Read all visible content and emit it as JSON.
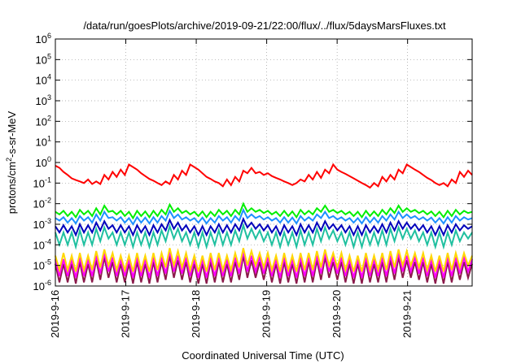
{
  "chart_data": {
    "type": "line",
    "title": "/data/run/goesPlots/archive/2019-09-21/22:00/flux/../flux/5daysMarsFluxes.txt",
    "xlabel": "Coordinated Universal Time (UTC)",
    "ylabel_main": "protons/cm",
    "ylabel_sup": "2",
    "ylabel_rest": "-s-sr-MeV",
    "y_scale": "log",
    "ylim": [
      1e-06,
      1000000.0
    ],
    "y_tick_base": "10",
    "y_tick_exponents": [
      "-6",
      "-5",
      "-4",
      "-3",
      "-2",
      "-1",
      "0",
      "1",
      "2",
      "3",
      "4",
      "5",
      "6"
    ],
    "xlim": [
      "2019-09-16T00:00",
      "2019-09-21T22:00"
    ],
    "x_tick_labels": [
      "2019-9-16",
      "2019-9-17",
      "2019-9-18",
      "2019-9-19",
      "2019-9-20",
      "2019-9-21"
    ],
    "grid": true,
    "legend": "none",
    "series": [
      {
        "color": "#ff0000",
        "values": [
          0.7,
          0.55,
          0.35,
          0.25,
          0.17,
          0.14,
          0.12,
          0.1,
          0.15,
          0.09,
          0.12,
          0.09,
          0.25,
          0.15,
          0.35,
          0.2,
          0.45,
          0.25,
          0.8,
          0.6,
          0.45,
          0.3,
          0.22,
          0.16,
          0.13,
          0.1,
          0.08,
          0.12,
          0.09,
          0.25,
          0.15,
          0.4,
          0.25,
          0.8,
          0.6,
          0.45,
          0.3,
          0.2,
          0.16,
          0.12,
          0.1,
          0.07,
          0.15,
          0.08,
          0.2,
          0.12,
          0.4,
          0.3,
          0.55,
          0.3,
          0.35,
          0.25,
          0.3,
          0.22,
          0.18,
          0.15,
          0.12,
          0.1,
          0.08,
          0.1,
          0.15,
          0.12,
          0.25,
          0.15,
          0.35,
          0.18,
          0.45,
          0.3,
          0.8,
          0.45,
          0.35,
          0.28,
          0.22,
          0.17,
          0.13,
          0.1,
          0.08,
          0.06,
          0.1,
          0.07,
          0.2,
          0.12,
          0.25,
          0.15,
          0.45,
          0.3,
          0.8,
          0.6,
          0.45,
          0.35,
          0.25,
          0.18,
          0.14,
          0.1,
          0.08,
          0.1,
          0.07,
          0.15,
          0.1,
          0.35,
          0.2,
          0.4,
          0.25
        ]
      },
      {
        "color": "#00ee00",
        "values": [
          0.004,
          0.003,
          0.0045,
          0.0025,
          0.004,
          0.0022,
          0.005,
          0.003,
          0.0045,
          0.0025,
          0.006,
          0.003,
          0.008,
          0.004,
          0.0045,
          0.003,
          0.0045,
          0.0025,
          0.004,
          0.002,
          0.0045,
          0.0025,
          0.0042,
          0.0022,
          0.0045,
          0.0025,
          0.005,
          0.003,
          0.009,
          0.004,
          0.006,
          0.0035,
          0.0045,
          0.003,
          0.004,
          0.0025,
          0.0042,
          0.0022,
          0.004,
          0.0025,
          0.005,
          0.003,
          0.0045,
          0.0025,
          0.005,
          0.003,
          0.01,
          0.004,
          0.006,
          0.004,
          0.005,
          0.0035,
          0.0045,
          0.003,
          0.004,
          0.0025,
          0.0045,
          0.0025,
          0.0042,
          0.0022,
          0.005,
          0.003,
          0.0045,
          0.003,
          0.006,
          0.004,
          0.008,
          0.004,
          0.005,
          0.0035,
          0.0045,
          0.003,
          0.004,
          0.0025,
          0.004,
          0.0022,
          0.0045,
          0.0025,
          0.0042,
          0.0025,
          0.005,
          0.003,
          0.006,
          0.0035,
          0.008,
          0.004,
          0.006,
          0.004,
          0.005,
          0.0035,
          0.0045,
          0.003,
          0.0042,
          0.0025,
          0.004,
          0.0022,
          0.0045,
          0.0025,
          0.005,
          0.003,
          0.0045,
          0.0035,
          0.004
        ]
      },
      {
        "color": "#1e90ff",
        "values": [
          0.002,
          0.0015,
          0.0022,
          0.0012,
          0.002,
          0.0011,
          0.0025,
          0.0015,
          0.0022,
          0.0012,
          0.003,
          0.0015,
          0.004,
          0.002,
          0.0022,
          0.0015,
          0.0022,
          0.0012,
          0.002,
          0.001,
          0.0022,
          0.0012,
          0.0021,
          0.0011,
          0.0022,
          0.0012,
          0.0025,
          0.0015,
          0.0045,
          0.002,
          0.003,
          0.0017,
          0.0022,
          0.0015,
          0.002,
          0.0012,
          0.0021,
          0.0011,
          0.002,
          0.0012,
          0.0025,
          0.0015,
          0.0022,
          0.0012,
          0.0025,
          0.0015,
          0.005,
          0.002,
          0.003,
          0.002,
          0.0025,
          0.0017,
          0.0022,
          0.0015,
          0.002,
          0.0012,
          0.0022,
          0.0012,
          0.0021,
          0.0011,
          0.0025,
          0.0015,
          0.0022,
          0.0015,
          0.003,
          0.002,
          0.004,
          0.002,
          0.0025,
          0.0017,
          0.0022,
          0.0015,
          0.002,
          0.0012,
          0.002,
          0.0011,
          0.0022,
          0.0012,
          0.0021,
          0.0012,
          0.0025,
          0.0015,
          0.003,
          0.0017,
          0.004,
          0.002,
          0.003,
          0.002,
          0.0025,
          0.0017,
          0.0022,
          0.0015,
          0.0021,
          0.0012,
          0.002,
          0.0011,
          0.0022,
          0.0012,
          0.0025,
          0.0015,
          0.0022,
          0.0017,
          0.002
        ]
      },
      {
        "color": "#0000bb",
        "values": [
          0.0008,
          0.0004,
          0.0009,
          0.0004,
          0.0008,
          0.0003,
          0.001,
          0.0004,
          0.0009,
          0.0004,
          0.0012,
          0.0005,
          0.0014,
          0.0006,
          0.0009,
          0.0004,
          0.0009,
          0.0004,
          0.0008,
          0.0003,
          0.0009,
          0.0004,
          0.0008,
          0.0003,
          0.0009,
          0.0004,
          0.001,
          0.0005,
          0.0016,
          0.0006,
          0.0012,
          0.0005,
          0.0009,
          0.0004,
          0.0008,
          0.0003,
          0.0008,
          0.0003,
          0.0008,
          0.0004,
          0.001,
          0.0004,
          0.0009,
          0.0004,
          0.001,
          0.0005,
          0.0018,
          0.0007,
          0.0012,
          0.0006,
          0.001,
          0.0005,
          0.0009,
          0.0004,
          0.0008,
          0.0003,
          0.0009,
          0.0004,
          0.0008,
          0.0003,
          0.001,
          0.0004,
          0.0009,
          0.0004,
          0.0012,
          0.0005,
          0.0014,
          0.0006,
          0.001,
          0.0005,
          0.0009,
          0.0004,
          0.0008,
          0.0003,
          0.0008,
          0.0003,
          0.0009,
          0.0004,
          0.0008,
          0.0004,
          0.001,
          0.0004,
          0.0012,
          0.0005,
          0.0014,
          0.0006,
          0.0012,
          0.0006,
          0.001,
          0.0005,
          0.0009,
          0.0004,
          0.0008,
          0.0003,
          0.0008,
          0.0003,
          0.0009,
          0.0004,
          0.001,
          0.0005,
          0.0009,
          0.0006,
          0.0008
        ]
      },
      {
        "color": "#20c0a0",
        "values": [
          0.0004,
          0.0001,
          0.0004,
          0.0001,
          0.0004,
          8e-05,
          0.0005,
          0.0001,
          0.0004,
          0.0001,
          0.0006,
          0.00015,
          0.0007,
          0.0002,
          0.0004,
          0.0001,
          0.0004,
          0.0001,
          0.0004,
          8e-05,
          0.0004,
          0.0001,
          0.0004,
          8e-05,
          0.0004,
          0.0001,
          0.0005,
          0.00015,
          0.0008,
          0.0002,
          0.0006,
          0.00015,
          0.0004,
          0.0001,
          0.0004,
          8e-05,
          0.0004,
          8e-05,
          0.0004,
          0.0001,
          0.0005,
          0.0001,
          0.0004,
          0.0001,
          0.0005,
          0.00015,
          0.0009,
          0.0002,
          0.0006,
          0.0002,
          0.0005,
          0.00015,
          0.0004,
          0.0001,
          0.0004,
          8e-05,
          0.0004,
          0.0001,
          0.0004,
          8e-05,
          0.0005,
          0.0001,
          0.0004,
          0.0001,
          0.0006,
          0.00015,
          0.0007,
          0.0002,
          0.0005,
          0.00015,
          0.0004,
          0.0001,
          0.0004,
          8e-05,
          0.0004,
          8e-05,
          0.0004,
          0.0001,
          0.0004,
          0.0001,
          0.0005,
          0.0001,
          0.0006,
          0.00015,
          0.0007,
          0.0002,
          0.0006,
          0.0002,
          0.0005,
          0.00015,
          0.0004,
          0.0001,
          0.0004,
          8e-05,
          0.0004,
          8e-05,
          0.0004,
          0.0001,
          0.0005,
          0.00015,
          0.0004,
          0.0002,
          0.0004
        ]
      },
      {
        "color": "#ffd700",
        "values": [
          3e-05,
          6e-06,
          4e-05,
          6e-06,
          3e-05,
          5e-06,
          4e-05,
          6e-06,
          3e-05,
          6e-06,
          5e-05,
          8e-06,
          6e-05,
          1e-05,
          4e-05,
          6e-06,
          3e-05,
          6e-06,
          3e-05,
          5e-06,
          4e-05,
          6e-06,
          3e-05,
          5e-06,
          4e-05,
          6e-06,
          4e-05,
          8e-06,
          7e-05,
          1e-05,
          5e-05,
          8e-06,
          4e-05,
          6e-06,
          3e-05,
          5e-06,
          3e-05,
          5e-06,
          4e-05,
          6e-06,
          4e-05,
          6e-06,
          3e-05,
          6e-06,
          4e-05,
          8e-06,
          7e-05,
          1e-05,
          5e-05,
          1e-05,
          4e-05,
          8e-06,
          4e-05,
          6e-06,
          3e-05,
          5e-06,
          4e-05,
          6e-06,
          3e-05,
          5e-06,
          4e-05,
          6e-06,
          4e-05,
          6e-06,
          5e-05,
          8e-06,
          6e-05,
          1e-05,
          4e-05,
          8e-06,
          4e-05,
          6e-06,
          3e-05,
          5e-06,
          3e-05,
          5e-06,
          4e-05,
          6e-06,
          3e-05,
          6e-06,
          4e-05,
          6e-06,
          5e-05,
          8e-06,
          6e-05,
          1e-05,
          5e-05,
          1e-05,
          4e-05,
          8e-06,
          4e-05,
          6e-06,
          3e-05,
          5e-06,
          3e-05,
          5e-06,
          4e-05,
          6e-06,
          4e-05,
          8e-06,
          4e-05,
          1e-05,
          3e-05
        ]
      },
      {
        "color": "#ff00ff",
        "values": [
          2e-05,
          3e-06,
          2e-05,
          3e-06,
          2e-05,
          2.5e-06,
          2.5e-05,
          3e-06,
          2e-05,
          3e-06,
          3e-05,
          4e-06,
          4e-05,
          5e-06,
          2.5e-05,
          3e-06,
          2e-05,
          3e-06,
          2e-05,
          2.5e-06,
          2.5e-05,
          3e-06,
          2e-05,
          2.5e-06,
          2.5e-05,
          3e-06,
          2.5e-05,
          4e-06,
          5e-05,
          5e-06,
          3e-05,
          4e-06,
          2.5e-05,
          3e-06,
          2e-05,
          2.5e-06,
          2e-05,
          2.5e-06,
          2.5e-05,
          3e-06,
          2.5e-05,
          3e-06,
          2e-05,
          3e-06,
          2.5e-05,
          4e-06,
          5e-05,
          5e-06,
          3e-05,
          5e-06,
          2.5e-05,
          4e-06,
          2.5e-05,
          3e-06,
          2e-05,
          2.5e-06,
          2.5e-05,
          3e-06,
          2e-05,
          2.5e-06,
          2.5e-05,
          3e-06,
          2.5e-05,
          3e-06,
          3e-05,
          4e-06,
          4e-05,
          5e-06,
          2.5e-05,
          4e-06,
          2.5e-05,
          3e-06,
          2e-05,
          2.5e-06,
          2e-05,
          2.5e-06,
          2.5e-05,
          3e-06,
          2e-05,
          3e-06,
          2.5e-05,
          3e-06,
          3e-05,
          4e-06,
          4e-05,
          5e-06,
          3e-05,
          5e-06,
          2.5e-05,
          4e-06,
          2.5e-05,
          3e-06,
          2e-05,
          2.5e-06,
          2e-05,
          2.5e-06,
          2.5e-05,
          3e-06,
          2.5e-05,
          4e-06,
          2.5e-05,
          5e-06,
          2e-05
        ]
      },
      {
        "color": "#8b1a4a",
        "values": [
          1.2e-05,
          1.5e-06,
          1.2e-05,
          1.5e-06,
          1.2e-05,
          1.3e-06,
          1.5e-05,
          1.5e-06,
          1.2e-05,
          1.5e-06,
          1.8e-05,
          2e-06,
          2.5e-05,
          2.5e-06,
          1.5e-05,
          1.5e-06,
          1.2e-05,
          1.5e-06,
          1.2e-05,
          1.3e-06,
          1.5e-05,
          1.5e-06,
          1.2e-05,
          1.3e-06,
          1.5e-05,
          1.5e-06,
          1.5e-05,
          2e-06,
          3e-05,
          2.5e-06,
          1.8e-05,
          2e-06,
          1.5e-05,
          1.5e-06,
          1.2e-05,
          1.3e-06,
          1.2e-05,
          1.3e-06,
          1.5e-05,
          1.5e-06,
          1.5e-05,
          1.5e-06,
          1.2e-05,
          1.5e-06,
          1.5e-05,
          2e-06,
          3e-05,
          2.5e-06,
          1.8e-05,
          2.5e-06,
          1.5e-05,
          2e-06,
          1.5e-05,
          1.5e-06,
          1.2e-05,
          1.3e-06,
          1.5e-05,
          1.5e-06,
          1.2e-05,
          1.3e-06,
          1.5e-05,
          1.5e-06,
          1.5e-05,
          1.5e-06,
          1.8e-05,
          2e-06,
          2.5e-05,
          2.5e-06,
          1.5e-05,
          2e-06,
          1.5e-05,
          1.5e-06,
          1.2e-05,
          1.3e-06,
          1.2e-05,
          1.3e-06,
          1.5e-05,
          1.5e-06,
          1.2e-05,
          1.5e-06,
          1.5e-05,
          1.5e-06,
          1.8e-05,
          2e-06,
          2.5e-05,
          2.5e-06,
          1.8e-05,
          2.5e-06,
          1.5e-05,
          2e-06,
          1.5e-05,
          1.5e-06,
          1.2e-05,
          1.3e-06,
          1.2e-05,
          1.3e-06,
          1.5e-05,
          1.5e-06,
          1.5e-05,
          2e-06,
          1.5e-05,
          2.5e-06,
          1.2e-05
        ]
      }
    ]
  }
}
